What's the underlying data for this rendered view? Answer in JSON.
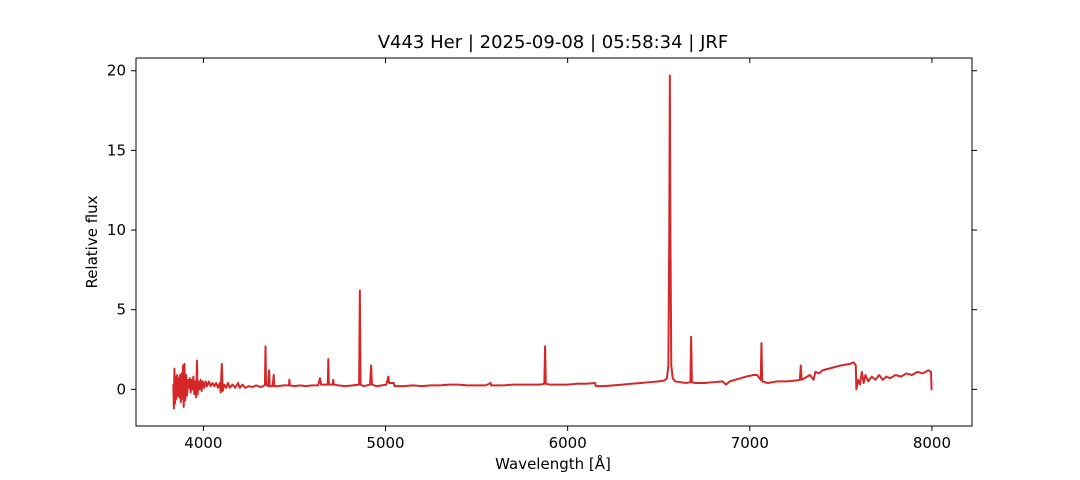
{
  "chart_data": {
    "type": "line",
    "title": "V443 Her | 2025-09-08 | 05:58:34 | JRF",
    "xlabel": "Wavelength [Å]",
    "ylabel": "Relative flux",
    "xlim": [
      3630,
      8220
    ],
    "ylim": [
      -2.3,
      20.8
    ],
    "x_ticks": [
      4000,
      5000,
      6000,
      7000,
      8000
    ],
    "x_tick_labels": [
      "4000",
      "5000",
      "6000",
      "7000",
      "8000"
    ],
    "y_ticks": [
      0,
      5,
      10,
      15,
      20
    ],
    "y_tick_labels": [
      "0",
      "5",
      "10",
      "15",
      "20"
    ],
    "grid": false,
    "series_color": "#d62728",
    "series": [
      {
        "points": [
          [
            3835,
            0.3
          ],
          [
            3838,
            -1.2
          ],
          [
            3841,
            1.3
          ],
          [
            3844,
            -0.9
          ],
          [
            3848,
            0.8
          ],
          [
            3852,
            -0.6
          ],
          [
            3856,
            0.9
          ],
          [
            3860,
            -0.4
          ],
          [
            3864,
            0.7
          ],
          [
            3868,
            -0.5
          ],
          [
            3872,
            0.9
          ],
          [
            3876,
            -0.8
          ],
          [
            3880,
            1.0
          ],
          [
            3884,
            -0.6
          ],
          [
            3888,
            1.5
          ],
          [
            3892,
            -1.1
          ],
          [
            3896,
            1.6
          ],
          [
            3900,
            -0.7
          ],
          [
            3905,
            0.9
          ],
          [
            3910,
            -0.4
          ],
          [
            3915,
            0.6
          ],
          [
            3920,
            0.1
          ],
          [
            3925,
            0.7
          ],
          [
            3930,
            -0.2
          ],
          [
            3935,
            0.6
          ],
          [
            3940,
            0.0
          ],
          [
            3945,
            0.8
          ],
          [
            3950,
            -0.3
          ],
          [
            3955,
            0.5
          ],
          [
            3960,
            -0.5
          ],
          [
            3965,
            1.8
          ],
          [
            3968,
            -0.3
          ],
          [
            3972,
            0.5
          ],
          [
            3978,
            0.0
          ],
          [
            3985,
            0.6
          ],
          [
            3990,
            -0.1
          ],
          [
            3997,
            0.5
          ],
          [
            4005,
            0.1
          ],
          [
            4012,
            0.5
          ],
          [
            4020,
            0.2
          ],
          [
            4030,
            0.5
          ],
          [
            4040,
            0.2
          ],
          [
            4050,
            0.4
          ],
          [
            4060,
            0.2
          ],
          [
            4070,
            0.4
          ],
          [
            4080,
            0.1
          ],
          [
            4090,
            0.4
          ],
          [
            4095,
            -0.2
          ],
          [
            4101,
            1.6
          ],
          [
            4106,
            -0.1
          ],
          [
            4115,
            0.3
          ],
          [
            4125,
            0.1
          ],
          [
            4135,
            0.4
          ],
          [
            4145,
            0.1
          ],
          [
            4160,
            0.3
          ],
          [
            4175,
            0.1
          ],
          [
            4190,
            0.4
          ],
          [
            4200,
            0.1
          ],
          [
            4215,
            0.3
          ],
          [
            4230,
            0.1
          ],
          [
            4250,
            0.2
          ],
          [
            4270,
            0.15
          ],
          [
            4290,
            0.25
          ],
          [
            4310,
            0.15
          ],
          [
            4330,
            0.2
          ],
          [
            4338,
            0.3
          ],
          [
            4341,
            2.7
          ],
          [
            4344,
            0.3
          ],
          [
            4355,
            0.2
          ],
          [
            4361,
            1.2
          ],
          [
            4364,
            0.2
          ],
          [
            4380,
            0.2
          ],
          [
            4386,
            0.9
          ],
          [
            4389,
            0.2
          ],
          [
            4410,
            0.2
          ],
          [
            4440,
            0.25
          ],
          [
            4470,
            0.25
          ],
          [
            4472,
            0.6
          ],
          [
            4475,
            0.25
          ],
          [
            4500,
            0.2
          ],
          [
            4530,
            0.25
          ],
          [
            4560,
            0.2
          ],
          [
            4600,
            0.25
          ],
          [
            4630,
            0.25
          ],
          [
            4640,
            0.7
          ],
          [
            4646,
            0.3
          ],
          [
            4670,
            0.3
          ],
          [
            4683,
            0.3
          ],
          [
            4686,
            1.9
          ],
          [
            4689,
            0.3
          ],
          [
            4710,
            0.3
          ],
          [
            4713,
            0.6
          ],
          [
            4716,
            0.3
          ],
          [
            4740,
            0.25
          ],
          [
            4780,
            0.2
          ],
          [
            4820,
            0.25
          ],
          [
            4855,
            0.3
          ],
          [
            4859,
            6.2
          ],
          [
            4863,
            0.3
          ],
          [
            4880,
            0.2
          ],
          [
            4915,
            0.3
          ],
          [
            4921,
            1.5
          ],
          [
            4925,
            0.3
          ],
          [
            4950,
            0.2
          ],
          [
            4980,
            0.25
          ],
          [
            5005,
            0.3
          ],
          [
            5015,
            0.8
          ],
          [
            5020,
            0.4
          ],
          [
            5045,
            0.4
          ],
          [
            5050,
            0.2
          ],
          [
            5100,
            0.2
          ],
          [
            5150,
            0.25
          ],
          [
            5200,
            0.2
          ],
          [
            5250,
            0.25
          ],
          [
            5300,
            0.25
          ],
          [
            5350,
            0.3
          ],
          [
            5400,
            0.3
          ],
          [
            5450,
            0.25
          ],
          [
            5500,
            0.25
          ],
          [
            5550,
            0.25
          ],
          [
            5577,
            0.4
          ],
          [
            5580,
            0.25
          ],
          [
            5650,
            0.25
          ],
          [
            5700,
            0.3
          ],
          [
            5750,
            0.3
          ],
          [
            5800,
            0.3
          ],
          [
            5850,
            0.3
          ],
          [
            5872,
            0.35
          ],
          [
            5876,
            2.7
          ],
          [
            5880,
            0.35
          ],
          [
            5900,
            0.3
          ],
          [
            5950,
            0.3
          ],
          [
            6000,
            0.3
          ],
          [
            6050,
            0.35
          ],
          [
            6100,
            0.35
          ],
          [
            6150,
            0.4
          ],
          [
            6155,
            0.2
          ],
          [
            6200,
            0.2
          ],
          [
            6250,
            0.25
          ],
          [
            6300,
            0.3
          ],
          [
            6350,
            0.35
          ],
          [
            6400,
            0.4
          ],
          [
            6450,
            0.45
          ],
          [
            6500,
            0.5
          ],
          [
            6530,
            0.55
          ],
          [
            6545,
            0.7
          ],
          [
            6553,
            1.5
          ],
          [
            6558,
            10.0
          ],
          [
            6561,
            19.7
          ],
          [
            6564,
            10.0
          ],
          [
            6569,
            1.5
          ],
          [
            6577,
            0.7
          ],
          [
            6590,
            0.5
          ],
          [
            6620,
            0.45
          ],
          [
            6650,
            0.4
          ],
          [
            6674,
            0.45
          ],
          [
            6678,
            3.3
          ],
          [
            6682,
            0.45
          ],
          [
            6700,
            0.4
          ],
          [
            6750,
            0.4
          ],
          [
            6800,
            0.45
          ],
          [
            6850,
            0.5
          ],
          [
            6870,
            0.3
          ],
          [
            6890,
            0.5
          ],
          [
            6920,
            0.6
          ],
          [
            6950,
            0.7
          ],
          [
            6980,
            0.8
          ],
          [
            7020,
            0.9
          ],
          [
            7040,
            0.9
          ],
          [
            7060,
            0.6
          ],
          [
            7064,
            2.9
          ],
          [
            7068,
            0.5
          ],
          [
            7100,
            0.4
          ],
          [
            7150,
            0.5
          ],
          [
            7200,
            0.5
          ],
          [
            7250,
            0.55
          ],
          [
            7275,
            0.6
          ],
          [
            7280,
            1.5
          ],
          [
            7285,
            0.6
          ],
          [
            7300,
            0.7
          ],
          [
            7330,
            0.9
          ],
          [
            7350,
            0.6
          ],
          [
            7360,
            1.1
          ],
          [
            7380,
            1.0
          ],
          [
            7400,
            1.2
          ],
          [
            7450,
            1.35
          ],
          [
            7500,
            1.5
          ],
          [
            7550,
            1.6
          ],
          [
            7570,
            1.7
          ],
          [
            7582,
            1.5
          ],
          [
            7585,
            0.0
          ],
          [
            7595,
            0.6
          ],
          [
            7605,
            0.3
          ],
          [
            7615,
            1.1
          ],
          [
            7625,
            0.4
          ],
          [
            7635,
            0.9
          ],
          [
            7650,
            0.5
          ],
          [
            7670,
            0.8
          ],
          [
            7690,
            0.6
          ],
          [
            7710,
            0.9
          ],
          [
            7730,
            0.6
          ],
          [
            7750,
            0.8
          ],
          [
            7770,
            0.7
          ],
          [
            7800,
            0.9
          ],
          [
            7830,
            0.8
          ],
          [
            7860,
            1.0
          ],
          [
            7890,
            0.9
          ],
          [
            7920,
            1.1
          ],
          [
            7950,
            1.0
          ],
          [
            7980,
            1.2
          ],
          [
            7995,
            1.1
          ],
          [
            7998,
            0.0
          ]
        ]
      }
    ]
  }
}
